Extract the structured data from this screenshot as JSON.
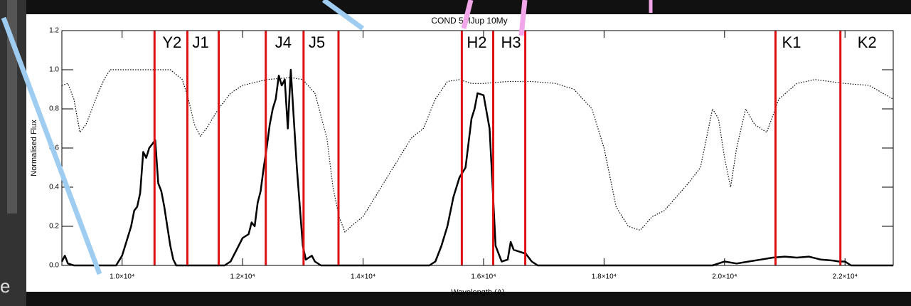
{
  "chart_data": {
    "type": "line",
    "title": "COND 5MJup 10My",
    "x_label": "Wavelength (A)",
    "y_label": "Normalised Flux",
    "xlim": [
      9000,
      22800
    ],
    "ylim": [
      0,
      1.2
    ],
    "xticks": [
      {
        "value": 10000,
        "label": "1.0×10⁴"
      },
      {
        "value": 12000,
        "label": "1.2×10⁴"
      },
      {
        "value": 14000,
        "label": "1.4×10⁴"
      },
      {
        "value": 16000,
        "label": "1.6×10⁴"
      },
      {
        "value": 18000,
        "label": "1.8×10⁴"
      },
      {
        "value": 20000,
        "label": "2.0×10⁴"
      },
      {
        "value": 22000,
        "label": "2.2×10⁴"
      }
    ],
    "yticks": [
      {
        "value": 0,
        "label": "0.0"
      },
      0.2,
      0.4,
      0.6,
      0.8,
      {
        "value": 1,
        "label": "1.0"
      },
      1.2
    ],
    "filter_edges": [
      10538,
      11083,
      11604,
      12385,
      13012,
      13592,
      15639,
      16160,
      16692,
      20846,
      21923
    ],
    "filter_color": "#dd1111",
    "filter_labels": [
      {
        "text": "Y2",
        "x": 10669
      },
      {
        "text": "J1",
        "x": 11166
      },
      {
        "text": "J4",
        "x": 12538
      },
      {
        "text": "J5",
        "x": 13095
      },
      {
        "text": "H2",
        "x": 15722
      },
      {
        "text": "H3",
        "x": 16290
      },
      {
        "text": "K1",
        "x": 20953
      },
      {
        "text": "K2",
        "x": 22207
      }
    ],
    "series": [
      {
        "style": "solid",
        "color": "#000000",
        "x": [
          9000,
          9050,
          9100,
          9200,
          9500,
          9900,
          10000,
          10100,
          10150,
          10200,
          10250,
          10300,
          10350,
          10400,
          10450,
          10500,
          10550,
          10600,
          10650,
          10700,
          10750,
          10800,
          10850,
          10900,
          11500,
          11700,
          11800,
          11900,
          12000,
          12100,
          12150,
          12200,
          12250,
          12300,
          12350,
          12400,
          12450,
          12500,
          12550,
          12600,
          12650,
          12700,
          12750,
          12800,
          12850,
          12900,
          12950,
          13000,
          13050,
          13100,
          13150,
          13200,
          13300,
          15100,
          15200,
          15300,
          15400,
          15500,
          15600,
          15700,
          15800,
          15850,
          15900,
          16000,
          16100,
          16150,
          16200,
          16300,
          16400,
          16450,
          16500,
          16600,
          16700,
          16800,
          16900,
          19800,
          20000,
          20200,
          20400,
          20600,
          20800,
          21000,
          21200,
          21400,
          21600,
          21800,
          21900,
          22000,
          22100,
          22800
        ],
        "values": [
          0.02,
          0.05,
          0.01,
          0.0,
          0.0,
          0.0,
          0.05,
          0.15,
          0.2,
          0.28,
          0.3,
          0.37,
          0.58,
          0.55,
          0.6,
          0.62,
          0.64,
          0.42,
          0.38,
          0.3,
          0.2,
          0.1,
          0.03,
          0.0,
          0.0,
          0.0,
          0.02,
          0.08,
          0.14,
          0.16,
          0.22,
          0.2,
          0.32,
          0.38,
          0.5,
          0.6,
          0.72,
          0.8,
          0.85,
          0.97,
          0.92,
          0.95,
          0.7,
          1.0,
          0.75,
          0.5,
          0.3,
          0.1,
          0.03,
          0.04,
          0.05,
          0.02,
          0.0,
          0.0,
          0.02,
          0.1,
          0.2,
          0.35,
          0.45,
          0.5,
          0.75,
          0.8,
          0.88,
          0.87,
          0.7,
          0.4,
          0.1,
          0.02,
          0.03,
          0.12,
          0.08,
          0.07,
          0.06,
          0.02,
          0.0,
          0.0,
          0.02,
          0.01,
          0.02,
          0.03,
          0.04,
          0.045,
          0.04,
          0.045,
          0.03,
          0.025,
          0.02,
          0.02,
          0.0,
          0.0
        ]
      },
      {
        "style": "dotted",
        "color": "#000000",
        "x": [
          9000,
          9100,
          9200,
          9300,
          9400,
          9500,
          9600,
          9700,
          9800,
          10000,
          10500,
          10800,
          11000,
          11100,
          11200,
          11300,
          11400,
          11600,
          11800,
          12000,
          12400,
          12800,
          13000,
          13200,
          13400,
          13500,
          13600,
          13700,
          13800,
          14000,
          14200,
          14500,
          14800,
          15000,
          15200,
          15400,
          15600,
          15800,
          16000,
          16400,
          16800,
          17200,
          17500,
          17800,
          18000,
          18200,
          18400,
          18600,
          18800,
          19000,
          19200,
          19400,
          19600,
          19800,
          19900,
          20000,
          20100,
          20200,
          20350,
          20500,
          20700,
          20900,
          21200,
          21500,
          22000,
          22400,
          22800
        ],
        "values": [
          0.92,
          0.93,
          0.85,
          0.68,
          0.72,
          0.8,
          0.88,
          0.95,
          1.0,
          1.0,
          1.0,
          1.0,
          0.95,
          0.85,
          0.72,
          0.66,
          0.7,
          0.8,
          0.88,
          0.92,
          0.95,
          0.96,
          0.95,
          0.88,
          0.65,
          0.4,
          0.25,
          0.17,
          0.2,
          0.25,
          0.35,
          0.5,
          0.65,
          0.7,
          0.85,
          0.94,
          0.95,
          0.93,
          0.93,
          0.94,
          0.94,
          0.93,
          0.9,
          0.8,
          0.6,
          0.3,
          0.2,
          0.18,
          0.25,
          0.28,
          0.35,
          0.42,
          0.5,
          0.8,
          0.75,
          0.55,
          0.4,
          0.6,
          0.8,
          0.72,
          0.68,
          0.85,
          0.93,
          0.95,
          0.93,
          0.92,
          0.85
        ]
      }
    ]
  },
  "background_text": "e"
}
